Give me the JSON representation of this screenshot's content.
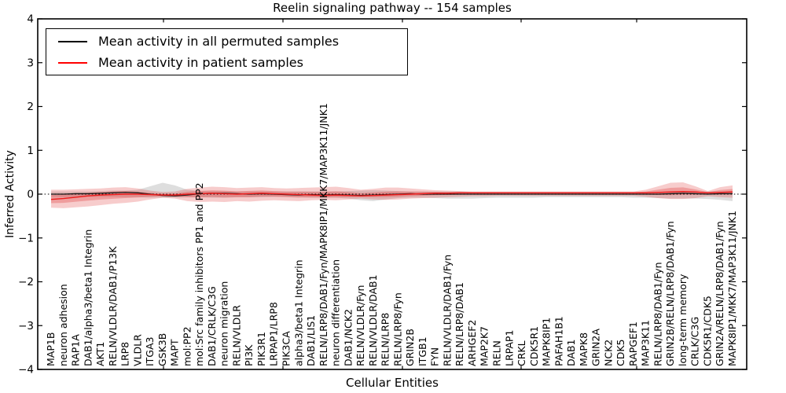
{
  "chart_data": {
    "type": "line",
    "title": "Reelin signaling pathway -- 154 samples",
    "xlabel": "Cellular Entities",
    "ylabel": "Inferred Activity",
    "ylim": [
      -4,
      4
    ],
    "ytick_labels": [
      "4",
      "3",
      "2",
      "1",
      "0",
      "−1",
      "−2",
      "−3",
      "−4"
    ],
    "zero_reference_line": "dotted black at y=0",
    "legend_position": "upper left",
    "grid": false,
    "categories": [
      "MAP1B",
      "neuron adhesion",
      "RAP1A",
      "DAB1/alpha3/beta1 Integrin",
      "AKT1",
      "RELN/VLDLR/DAB1/P13K",
      "LRP8",
      "VLDLR",
      "ITGA3",
      "GSK3B",
      "MAPT",
      "mol:PP2",
      "mol:Src family inhibitors PP1 and PP2",
      "DAB1/CRLK/C3G",
      "neuron migration",
      "RELN/VLDLR",
      "PI3K",
      "PIK3R1",
      "LRPAP1/LRP8",
      "PIK3CA",
      "alpha3/beta1 Integrin",
      "DAB1/LIS1",
      "RELN/LRP8/DAB1/Fyn/MAPK8IP1/MKK7/MAP3K11/JNK1",
      "neuron differentiation",
      "DAB1/NCK2",
      "RELN/VLDLR/Fyn",
      "RELN/VLDLR/DAB1",
      "RELN/LRP8",
      "RELN/LRP8/Fyn",
      "GRIN2B",
      "ITGB1",
      "FYN",
      "RELN/VLDLR/DAB1/Fyn",
      "RELN/LRP8/DAB1",
      "ARHGEF2",
      "MAP2K7",
      "RELN",
      "LRPAP1",
      "CRKL",
      "CDK5R1",
      "MAPK8IP1",
      "PAFAH1B1",
      "DAB1",
      "MAPK8",
      "GRIN2A",
      "NCK2",
      "CDK5",
      "RAPGEF1",
      "MAP3K11",
      "RELN/LRP8/DAB1/Fyn",
      "GRIN2B/RELN/LRP8/DAB1/Fyn",
      "long-term memory",
      "CRLK/C3G",
      "CDK5R1/CDK5",
      "GRIN2A/RELN/LRP8/DAB1/Fyn",
      "MAPK8IP1/MKK7/MAP3K11/JNK1"
    ],
    "series": [
      {
        "name": "Mean activity in all permuted samples",
        "color": "#000000",
        "values": [
          0.0,
          0.0,
          0.01,
          0.01,
          0.02,
          0.03,
          0.04,
          0.03,
          0.0,
          -0.03,
          -0.04,
          -0.02,
          0.01,
          0.02,
          0.02,
          0.01,
          0.0,
          0.01,
          0.0,
          -0.01,
          -0.02,
          -0.01,
          -0.02,
          -0.01,
          -0.02,
          -0.03,
          -0.02,
          -0.01,
          0.0,
          0.01,
          0.0,
          0.0,
          0.0,
          0.0,
          0.0,
          0.0,
          0.0,
          0.0,
          0.0,
          0.0,
          0.0,
          0.0,
          0.0,
          0.0,
          0.0,
          0.0,
          0.0,
          0.0,
          0.0,
          0.0,
          0.01,
          0.02,
          0.01,
          0.0,
          0.01,
          0.01
        ]
      },
      {
        "name": "Mean activity in patient samples",
        "color": "#ff0000",
        "values": [
          -0.12,
          -0.1,
          -0.07,
          -0.04,
          -0.02,
          -0.01,
          0.0,
          0.0,
          -0.01,
          -0.02,
          -0.02,
          0.0,
          0.01,
          0.02,
          0.01,
          0.0,
          0.01,
          0.02,
          0.01,
          0.0,
          -0.01,
          -0.02,
          -0.03,
          -0.02,
          -0.03,
          -0.04,
          -0.03,
          -0.02,
          -0.01,
          0.0,
          0.01,
          0.02,
          0.02,
          0.03,
          0.03,
          0.03,
          0.03,
          0.03,
          0.03,
          0.03,
          0.03,
          0.03,
          0.03,
          0.03,
          0.03,
          0.03,
          0.03,
          0.03,
          0.03,
          0.04,
          0.05,
          0.06,
          0.05,
          0.03,
          0.04,
          0.05
        ]
      }
    ],
    "bands": [
      {
        "name": "permuted samples activity range",
        "color": "#a8a8a8",
        "upper": [
          0.06,
          0.06,
          0.06,
          0.06,
          0.07,
          0.08,
          0.08,
          0.1,
          0.18,
          0.26,
          0.2,
          0.1,
          0.07,
          0.07,
          0.07,
          0.06,
          0.06,
          0.06,
          0.06,
          0.06,
          0.06,
          0.06,
          0.06,
          0.06,
          0.07,
          0.08,
          0.09,
          0.08,
          0.07,
          0.06,
          0.06,
          0.06,
          0.06,
          0.06,
          0.05,
          0.05,
          0.05,
          0.05,
          0.05,
          0.05,
          0.05,
          0.05,
          0.05,
          0.05,
          0.05,
          0.05,
          0.05,
          0.05,
          0.05,
          0.05,
          0.05,
          0.05,
          0.05,
          0.06,
          0.06,
          0.07
        ],
        "lower": [
          -0.06,
          -0.07,
          -0.07,
          -0.06,
          -0.06,
          -0.06,
          -0.07,
          -0.07,
          -0.08,
          -0.08,
          -0.08,
          -0.07,
          -0.07,
          -0.08,
          -0.08,
          -0.07,
          -0.07,
          -0.07,
          -0.06,
          -0.06,
          -0.07,
          -0.08,
          -0.08,
          -0.08,
          -0.1,
          -0.14,
          -0.16,
          -0.12,
          -0.09,
          -0.08,
          -0.08,
          -0.09,
          -0.1,
          -0.1,
          -0.1,
          -0.09,
          -0.08,
          -0.08,
          -0.08,
          -0.08,
          -0.07,
          -0.07,
          -0.07,
          -0.07,
          -0.07,
          -0.07,
          -0.07,
          -0.08,
          -0.08,
          -0.09,
          -0.1,
          -0.1,
          -0.1,
          -0.11,
          -0.13,
          -0.16
        ]
      },
      {
        "name": "patient samples activity range",
        "color": "#e03a3a",
        "upper": [
          0.1,
          0.1,
          0.11,
          0.12,
          0.13,
          0.15,
          0.16,
          0.13,
          0.08,
          0.05,
          0.06,
          0.12,
          0.15,
          0.17,
          0.16,
          0.14,
          0.15,
          0.16,
          0.14,
          0.13,
          0.14,
          0.15,
          0.16,
          0.17,
          0.14,
          0.1,
          0.12,
          0.15,
          0.15,
          0.13,
          0.11,
          0.09,
          0.08,
          0.07,
          0.06,
          0.06,
          0.06,
          0.06,
          0.06,
          0.06,
          0.06,
          0.06,
          0.06,
          0.06,
          0.06,
          0.06,
          0.06,
          0.06,
          0.1,
          0.18,
          0.26,
          0.27,
          0.18,
          0.07,
          0.16,
          0.2
        ],
        "lower": [
          -0.31,
          -0.32,
          -0.3,
          -0.28,
          -0.25,
          -0.22,
          -0.2,
          -0.17,
          -0.12,
          -0.08,
          -0.1,
          -0.16,
          -0.18,
          -0.17,
          -0.18,
          -0.16,
          -0.17,
          -0.15,
          -0.14,
          -0.15,
          -0.16,
          -0.14,
          -0.13,
          -0.14,
          -0.12,
          -0.1,
          -0.12,
          -0.13,
          -0.12,
          -0.1,
          -0.09,
          -0.08,
          -0.07,
          -0.06,
          -0.05,
          -0.05,
          -0.04,
          -0.04,
          -0.04,
          -0.04,
          -0.04,
          -0.04,
          -0.04,
          -0.04,
          -0.04,
          -0.04,
          -0.04,
          -0.04,
          -0.06,
          -0.09,
          -0.11,
          -0.11,
          -0.09,
          -0.05,
          -0.07,
          -0.08
        ]
      }
    ]
  }
}
